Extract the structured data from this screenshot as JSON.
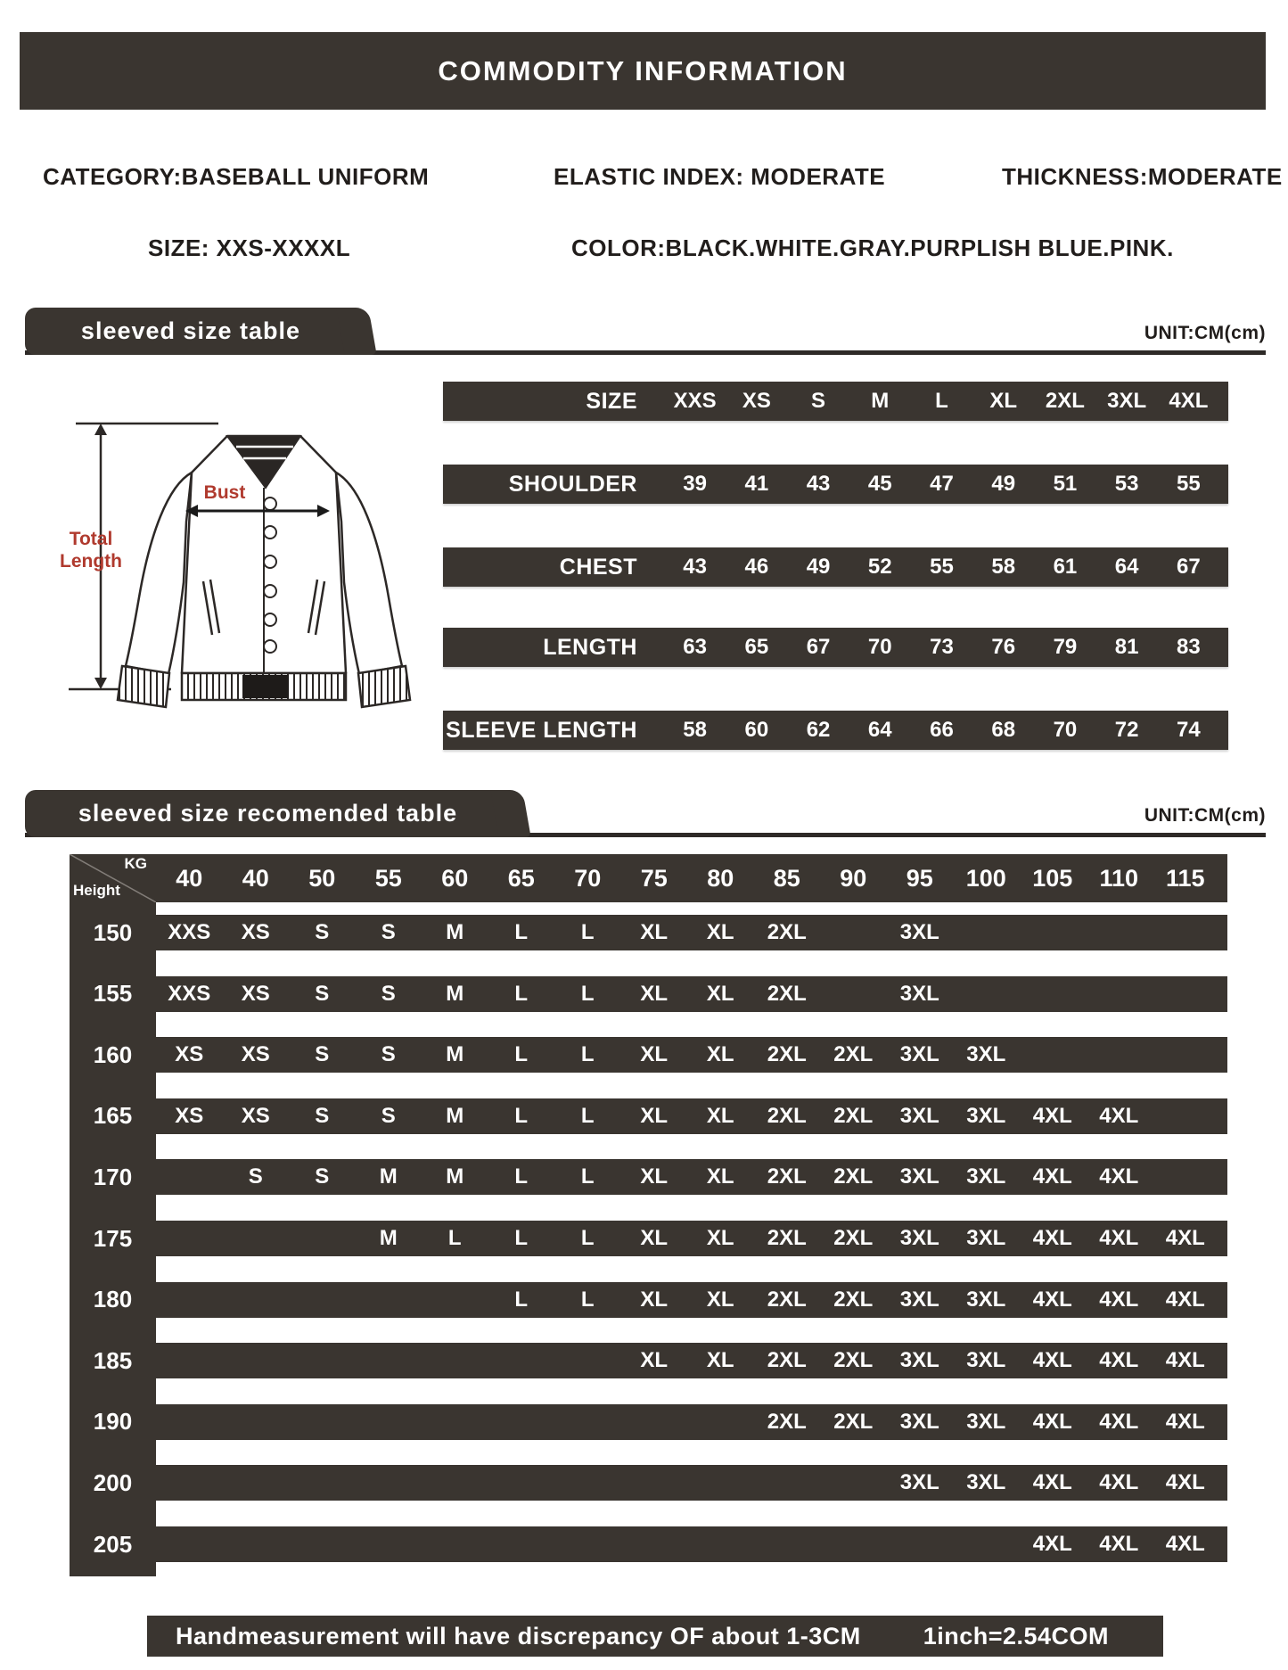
{
  "page": {
    "title": "COMMODITY INFORMATION",
    "unit_label": "UNIT:CM(cm)",
    "footer_note": "Handmeasurement will have discrepancy OF about 1-3CM",
    "footer_conversion": "1inch=2.54COM"
  },
  "specs": {
    "category": "CATEGORY:BASEBALL UNIFORM",
    "elastic": "ELASTIC INDEX: MODERATE",
    "thickness": "THICKNESS:MODERATE",
    "size_range": "SIZE: XXS-XXXXL",
    "color": "COLOR:BLACK.WHITE.GRAY.PURPLISH BLUE.PINK."
  },
  "diagram": {
    "bust_label": "Bust",
    "total_length_lines": [
      "Total",
      "Length"
    ],
    "accent_color": "#b03a2e"
  },
  "size_table": {
    "section_title": "sleeved size table",
    "rows": [
      {
        "label": "SIZE",
        "values": [
          "XXS",
          "XS",
          "S",
          "M",
          "L",
          "XL",
          "2XL",
          "3XL",
          "4XL"
        ]
      },
      {
        "label": "SHOULDER",
        "values": [
          "39",
          "41",
          "43",
          "45",
          "47",
          "49",
          "51",
          "53",
          "55"
        ]
      },
      {
        "label": "CHEST",
        "values": [
          "43",
          "46",
          "49",
          "52",
          "55",
          "58",
          "61",
          "64",
          "67"
        ]
      },
      {
        "label": "LENGTH",
        "values": [
          "63",
          "65",
          "67",
          "70",
          "73",
          "76",
          "79",
          "81",
          "83"
        ]
      },
      {
        "label": "SLEEVE LENGTH",
        "values": [
          "58",
          "60",
          "62",
          "64",
          "66",
          "68",
          "70",
          "72",
          "74"
        ]
      }
    ]
  },
  "recommend_table": {
    "section_title": "sleeved size recomended table",
    "corner": {
      "top": "KG",
      "bottom": "Height"
    },
    "weights": [
      "40",
      "40",
      "50",
      "55",
      "60",
      "65",
      "70",
      "75",
      "80",
      "85",
      "90",
      "95",
      "100",
      "105",
      "110",
      "115"
    ],
    "rows": [
      {
        "height": "150",
        "sizes": [
          "XXS",
          "XS",
          "S",
          "S",
          "M",
          "L",
          "L",
          "XL",
          "XL",
          "2XL",
          "",
          "3XL",
          "",
          "",
          "",
          ""
        ]
      },
      {
        "height": "155",
        "sizes": [
          "XXS",
          "XS",
          "S",
          "S",
          "M",
          "L",
          "L",
          "XL",
          "XL",
          "2XL",
          "",
          "3XL",
          "",
          "",
          "",
          ""
        ]
      },
      {
        "height": "160",
        "sizes": [
          "XS",
          "XS",
          "S",
          "S",
          "M",
          "L",
          "L",
          "XL",
          "XL",
          "2XL",
          "2XL",
          "3XL",
          "3XL",
          "",
          "",
          ""
        ]
      },
      {
        "height": "165",
        "sizes": [
          "XS",
          "XS",
          "S",
          "S",
          "M",
          "L",
          "L",
          "XL",
          "XL",
          "2XL",
          "2XL",
          "3XL",
          "3XL",
          "4XL",
          "4XL",
          ""
        ]
      },
      {
        "height": "170",
        "sizes": [
          "",
          "S",
          "S",
          "M",
          "M",
          "L",
          "L",
          "XL",
          "XL",
          "2XL",
          "2XL",
          "3XL",
          "3XL",
          "4XL",
          "4XL",
          ""
        ]
      },
      {
        "height": "175",
        "sizes": [
          "",
          "",
          "",
          "M",
          "L",
          "L",
          "L",
          "XL",
          "XL",
          "2XL",
          "2XL",
          "3XL",
          "3XL",
          "4XL",
          "4XL",
          "4XL"
        ]
      },
      {
        "height": "180",
        "sizes": [
          "",
          "",
          "",
          "",
          "",
          "L",
          "L",
          "XL",
          "XL",
          "2XL",
          "2XL",
          "3XL",
          "3XL",
          "4XL",
          "4XL",
          "4XL"
        ]
      },
      {
        "height": "185",
        "sizes": [
          "",
          "",
          "",
          "",
          "",
          "",
          "",
          "XL",
          "XL",
          "2XL",
          "2XL",
          "3XL",
          "3XL",
          "4XL",
          "4XL",
          "4XL"
        ]
      },
      {
        "height": "190",
        "sizes": [
          "",
          "",
          "",
          "",
          "",
          "",
          "",
          "",
          "",
          "2XL",
          "2XL",
          "3XL",
          "3XL",
          "4XL",
          "4XL",
          "4XL"
        ]
      },
      {
        "height": "200",
        "sizes": [
          "",
          "",
          "",
          "",
          "",
          "",
          "",
          "",
          "",
          "",
          "",
          "3XL",
          "3XL",
          "4XL",
          "4XL",
          "4XL"
        ]
      },
      {
        "height": "205",
        "sizes": [
          "",
          "",
          "",
          "",
          "",
          "",
          "",
          "",
          "",
          "",
          "",
          "",
          "",
          "4XL",
          "4XL",
          "4XL"
        ]
      }
    ]
  },
  "colors": {
    "bar": "#3a3530",
    "accent_red": "#b03a2e"
  }
}
